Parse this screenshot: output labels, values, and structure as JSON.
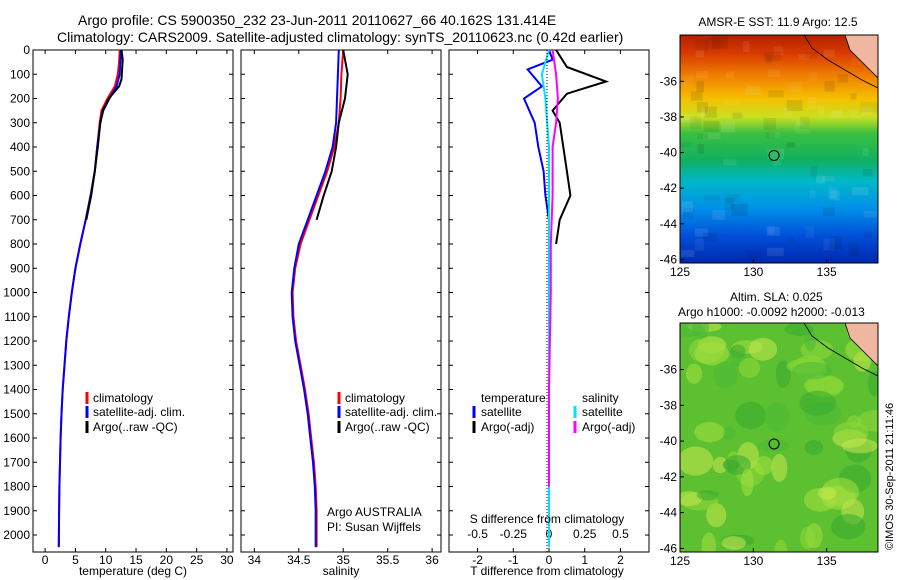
{
  "header": {
    "title_line1": "Argo profile: CS 5900350_232 23-Jun-2011 20110627_66 40.162S 131.414E",
    "title_line2": "Climatology: CARS2009. Satellite-adjusted climatology: synTS_20110623.nc (0.42d earlier)"
  },
  "colors": {
    "climatology": "#ff0000",
    "satellite": "#0000ff",
    "argo": "#000000",
    "sal_satellite": "#00e0ff",
    "sal_argo": "#ff00ff",
    "frame": "#000000"
  },
  "chart_data": [
    {
      "type": "line",
      "name": "temperature-panel",
      "xlabel": "temperature (deg C)",
      "ylabel": "",
      "xlim": [
        -2,
        31
      ],
      "ylim": [
        0,
        2070
      ],
      "y_inverted": true,
      "xticks": [
        0,
        5,
        10,
        15,
        20,
        25,
        30
      ],
      "yticks": [
        0,
        100,
        200,
        300,
        400,
        500,
        600,
        700,
        800,
        900,
        1000,
        1100,
        1200,
        1300,
        1400,
        1500,
        1600,
        1700,
        1800,
        1900,
        2000
      ],
      "legend": [
        "climatology",
        "satellite-adj. clim.",
        "Argo(..raw -QC)"
      ],
      "series": [
        {
          "name": "climatology",
          "color": "#ff0000",
          "x": [
            12.3,
            12.2,
            12.0,
            11.5,
            10.3,
            9.3,
            9.0,
            8.6,
            8.2,
            7.5,
            6.7,
            5.8,
            5.0,
            4.4,
            3.9,
            3.5,
            3.2,
            2.9,
            2.7,
            2.55,
            2.45,
            2.35,
            2.3,
            2.25
          ],
          "y": [
            0,
            50,
            100,
            150,
            200,
            250,
            300,
            400,
            500,
            600,
            700,
            800,
            900,
            1000,
            1100,
            1200,
            1300,
            1400,
            1500,
            1600,
            1700,
            1800,
            1900,
            2050
          ]
        },
        {
          "name": "satellite-adj. clim.",
          "color": "#0000ff",
          "x": [
            12.5,
            12.4,
            12.3,
            11.8,
            10.6,
            9.6,
            9.1,
            8.6,
            8.2,
            7.5,
            6.7,
            5.8,
            5.0,
            4.4,
            3.9,
            3.5,
            3.2,
            2.9,
            2.7,
            2.55,
            2.45,
            2.35,
            2.3,
            2.25
          ],
          "y": [
            0,
            50,
            100,
            150,
            200,
            250,
            300,
            400,
            500,
            600,
            700,
            800,
            900,
            1000,
            1100,
            1200,
            1300,
            1400,
            1500,
            1600,
            1700,
            1800,
            1900,
            2050
          ]
        },
        {
          "name": "Argo(..raw -QC)",
          "color": "#000000",
          "x": [
            12.6,
            12.8,
            12.7,
            12.6,
            12.2,
            10.5,
            9.5,
            9.1,
            8.7,
            8.2,
            7.6,
            6.8
          ],
          "y": [
            0,
            40,
            80,
            120,
            150,
            200,
            250,
            300,
            400,
            500,
            600,
            700
          ]
        }
      ]
    },
    {
      "type": "line",
      "name": "salinity-panel",
      "xlabel": "salinity",
      "xlim": [
        33.85,
        36.1
      ],
      "ylim": [
        0,
        2070
      ],
      "y_inverted": true,
      "xticks": [
        34,
        34.5,
        35,
        35.5,
        36
      ],
      "legend": [
        "climatology",
        "satellite-adj. clim.",
        "Argo(..raw -QC)"
      ],
      "annotations": [
        "Argo AUSTRALIA",
        "PI: Susan Wijffels"
      ],
      "series": [
        {
          "name": "climatology",
          "color": "#ff0000",
          "x": [
            35.0,
            34.98,
            34.97,
            34.95,
            34.9,
            34.82,
            34.72,
            34.62,
            34.52,
            34.46,
            34.43,
            34.44,
            34.47,
            34.52,
            34.57,
            34.61,
            34.64,
            34.67,
            34.69,
            34.7,
            34.7,
            34.7
          ],
          "y": [
            0,
            100,
            200,
            300,
            400,
            500,
            600,
            700,
            800,
            900,
            1000,
            1100,
            1200,
            1300,
            1400,
            1500,
            1600,
            1700,
            1800,
            1900,
            2000,
            2050
          ]
        },
        {
          "name": "satellite-adj. clim.",
          "color": "#0000ff",
          "x": [
            34.95,
            34.94,
            34.93,
            34.92,
            34.88,
            34.8,
            34.7,
            34.6,
            34.5,
            34.45,
            34.42,
            34.43,
            34.46,
            34.51,
            34.56,
            34.6,
            34.63,
            34.66,
            34.68,
            34.69,
            34.69,
            34.69
          ],
          "y": [
            0,
            100,
            200,
            300,
            400,
            500,
            600,
            700,
            800,
            900,
            1000,
            1100,
            1200,
            1300,
            1400,
            1500,
            1600,
            1700,
            1800,
            1900,
            2000,
            2050
          ]
        },
        {
          "name": "Argo(..raw -QC)",
          "color": "#000000",
          "x": [
            35.0,
            35.05,
            35.02,
            34.95,
            34.92,
            34.87,
            34.78,
            34.7
          ],
          "y": [
            0,
            100,
            200,
            300,
            400,
            500,
            600,
            700
          ]
        }
      ]
    },
    {
      "type": "line",
      "name": "difference-panel",
      "xlabel": "T difference from climatology",
      "top_xlabel": "S difference from climatology",
      "xlim": [
        -2.8,
        2.8
      ],
      "ylim": [
        0,
        2070
      ],
      "y_inverted": true,
      "xticks": [
        -2,
        -1,
        0,
        1,
        2
      ],
      "top_xticks": [
        -0.5,
        -0.25,
        0,
        0.25,
        0.5
      ],
      "legend_temperature": {
        "title": "temperature",
        "items": [
          "satellite",
          "Argo(-adj)"
        ]
      },
      "legend_salinity": {
        "title": "salinity",
        "items": [
          "satellite",
          "Argo(-adj)"
        ]
      },
      "series": [
        {
          "name": "satellite",
          "color": "#0000ff",
          "x": [
            0,
            0.1,
            -0.6,
            -0.2,
            -0.7,
            -0.4,
            -0.3,
            -0.15,
            -0.1,
            0,
            0,
            0,
            0,
            0,
            0,
            0,
            0,
            0,
            0,
            0
          ],
          "y": [
            0,
            40,
            80,
            150,
            200,
            300,
            400,
            500,
            600,
            700,
            800,
            900,
            1000,
            1200,
            1400,
            1600,
            1800,
            1900,
            2000,
            2050
          ]
        },
        {
          "name": "Argo(-adj)",
          "color": "#000000",
          "x": [
            0.2,
            0.5,
            1.6,
            0.5,
            0.1,
            0.3,
            0.4,
            0.5,
            0.6,
            0.3,
            0.2
          ],
          "y": [
            0,
            70,
            130,
            180,
            250,
            300,
            400,
            500,
            600,
            700,
            800
          ]
        },
        {
          "name": "sal-satellite",
          "color": "#00e0ff",
          "x": [
            0,
            -0.1,
            -0.2,
            -0.1,
            0,
            0,
            0,
            0,
            0,
            0,
            0,
            0
          ],
          "y": [
            0,
            50,
            100,
            200,
            400,
            600,
            800,
            1000,
            1400,
            1800,
            2000,
            2050
          ]
        },
        {
          "name": "sal-Argo(-adj)",
          "color": "#ff00ff",
          "x": [
            0.1,
            0.2,
            0.25,
            0.2,
            0.1,
            0.1,
            0.05,
            0.05,
            0,
            0
          ],
          "y": [
            0,
            100,
            200,
            300,
            400,
            600,
            800,
            1000,
            1400,
            1800
          ]
        }
      ]
    },
    {
      "type": "heatmap",
      "name": "sst-map",
      "title": "AMSR-E SST: 11.9 Argo: 12.5",
      "xlim": [
        125,
        138.5
      ],
      "ylim": [
        -46.2,
        -33.4
      ],
      "xticks": [
        125,
        130,
        135
      ],
      "yticks": [
        -36,
        -38,
        -40,
        -42,
        -44,
        -46
      ],
      "marker": {
        "lon": 131.414,
        "lat": -40.162
      }
    },
    {
      "type": "heatmap",
      "name": "sla-map",
      "title": "Altim. SLA: 0.025",
      "subtitle": "Argo h1000: -0.0092 h2000: -0.013",
      "xlim": [
        125,
        138.5
      ],
      "ylim": [
        -46.2,
        -33.4
      ],
      "xticks": [
        125,
        130,
        135
      ],
      "yticks": [
        -36,
        -38,
        -40,
        -42,
        -44,
        -46
      ],
      "marker": {
        "lon": 131.414,
        "lat": -40.162
      }
    }
  ],
  "footer": {
    "credit": "©IMOS 30-Sep-2011 21:11:46"
  }
}
